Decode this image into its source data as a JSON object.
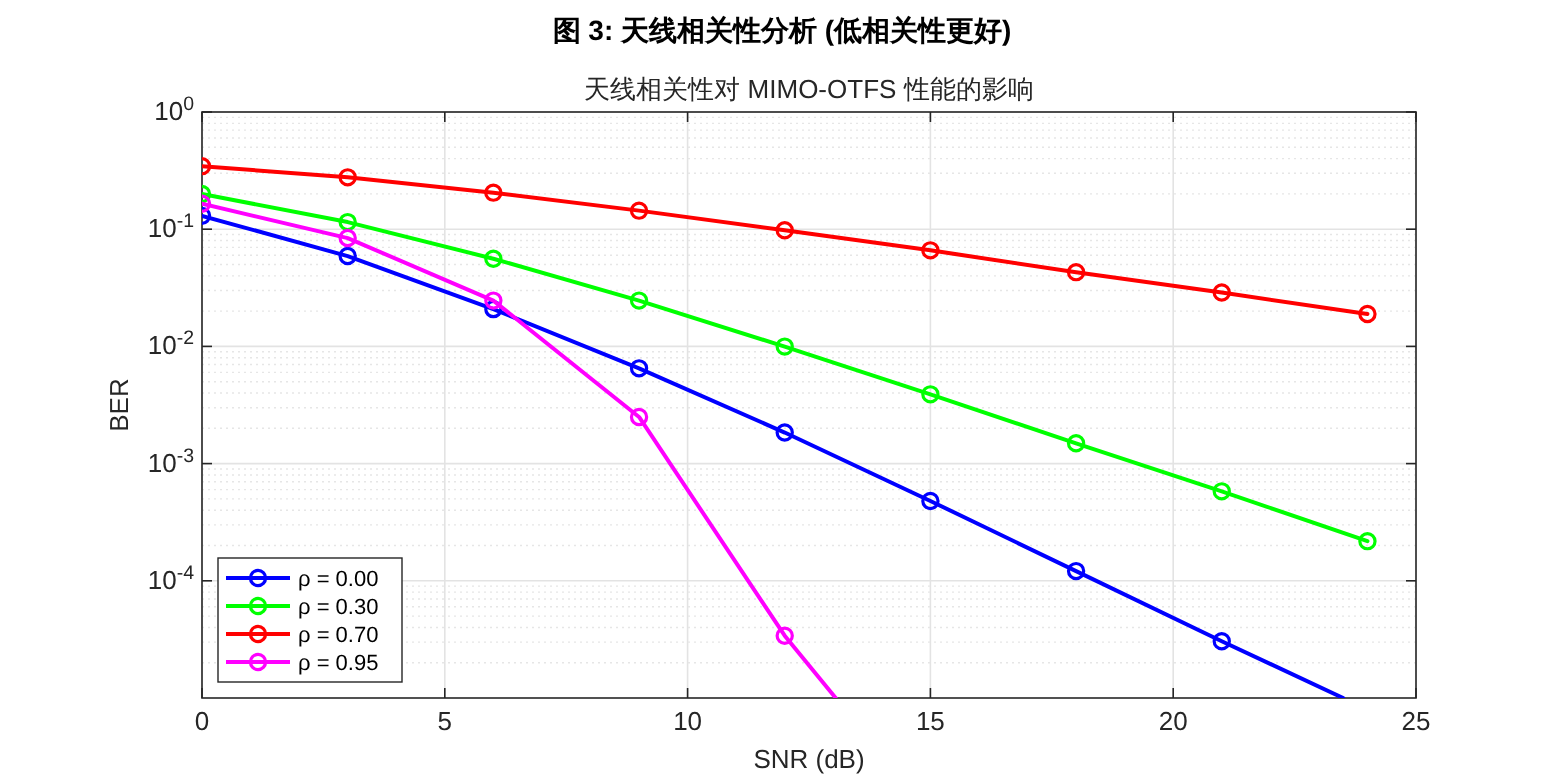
{
  "chart_data": {
    "type": "line",
    "title": "图 3: 天线相关性分析 (低相关性更好)",
    "subtitle": "天线相关性对 MIMO-OTFS 性能的影响",
    "xlabel": "SNR (dB)",
    "ylabel": "BER",
    "series": [
      {
        "name": "ρ = 0.00",
        "color": "#0000ff",
        "x": [
          0,
          3,
          6,
          9,
          12,
          15,
          18,
          21,
          23.5
        ],
        "values": [
          0.13,
          0.059,
          0.0208,
          0.0065,
          0.00184,
          0.00048,
          0.000121,
          3.05e-05,
          1e-05
        ]
      },
      {
        "name": "ρ = 0.30",
        "color": "#00ff00",
        "x": [
          0,
          3,
          6,
          9,
          12,
          15,
          18,
          21,
          24
        ],
        "values": [
          0.2,
          0.115,
          0.056,
          0.0246,
          0.00996,
          0.0039,
          0.00149,
          0.00058,
          0.000218
        ]
      },
      {
        "name": "ρ = 0.70",
        "color": "#ff0000",
        "x": [
          0,
          3,
          6,
          9,
          12,
          15,
          18,
          21,
          24
        ],
        "values": [
          0.345,
          0.277,
          0.205,
          0.144,
          0.098,
          0.066,
          0.043,
          0.0288,
          0.0189
        ]
      },
      {
        "name": "ρ = 0.95",
        "color": "#ff00ff",
        "x": [
          0,
          3,
          6,
          9,
          12,
          13.05
        ],
        "values": [
          0.165,
          0.084,
          0.0246,
          0.0025,
          3.4e-05,
          1e-05
        ]
      }
    ],
    "xlim": [
      0,
      25
    ],
    "xticks": [
      0,
      5,
      10,
      15,
      20,
      25
    ],
    "ylim": [
      1e-05,
      1
    ],
    "yticks": [
      {
        "value": 0.0001,
        "label": "10$^{-4}$"
      },
      {
        "value": 0.001,
        "label": "10$^{-3}$"
      },
      {
        "value": 0.01,
        "label": "10$^{-2}$"
      },
      {
        "value": 0.1,
        "label": "10$^{-1}$"
      },
      {
        "value": 1,
        "label": "10$^{0}$"
      }
    ],
    "log": "y",
    "grid": true,
    "legend": "bottom left",
    "marker": "circle",
    "line_style": "solid"
  }
}
